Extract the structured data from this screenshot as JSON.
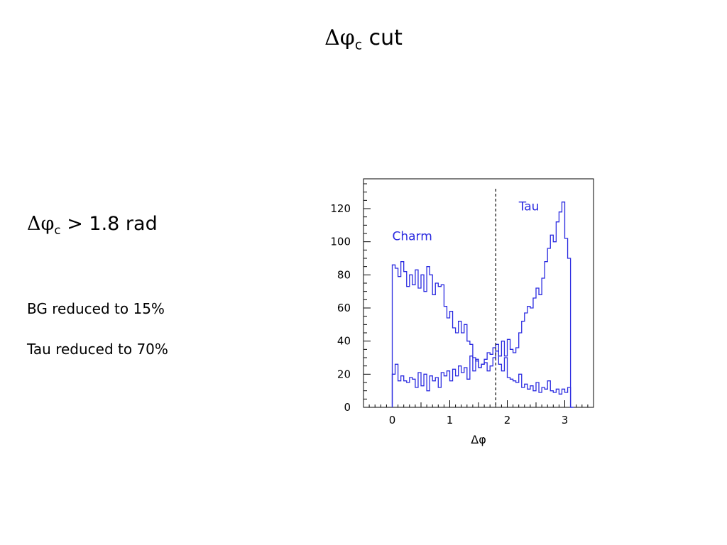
{
  "slide": {
    "title_symbol": "Δφ",
    "title_subscript": "c",
    "title_rest": " cut",
    "cut_symbol": "Δφ",
    "cut_subscript": "c",
    "cut_rest": " > 1.8 rad",
    "note_bg": "BG reduced to 15%",
    "note_tau": "Tau reduced to 70%"
  },
  "colors": {
    "histogram": "#2a2ae0",
    "axis": "#000000",
    "cut_line": "#000000"
  },
  "chart_data": {
    "type": "line",
    "xlabel": "Δφ",
    "ylabel": "",
    "xlim": [
      -0.5,
      3.5
    ],
    "ylim": [
      0,
      138
    ],
    "x_ticks": [
      0,
      1,
      2,
      3
    ],
    "y_ticks": [
      0,
      20,
      40,
      60,
      80,
      100,
      120
    ],
    "grid": false,
    "legend": "none",
    "bin_edges": [
      0,
      0.05,
      0.1,
      0.15,
      0.2,
      0.25,
      0.3,
      0.35,
      0.4,
      0.45,
      0.5,
      0.55,
      0.6,
      0.65,
      0.7,
      0.75,
      0.8,
      0.85,
      0.9,
      0.95,
      1.0,
      1.05,
      1.1,
      1.15,
      1.2,
      1.25,
      1.3,
      1.35,
      1.4,
      1.45,
      1.5,
      1.55,
      1.6,
      1.65,
      1.7,
      1.75,
      1.8,
      1.85,
      1.9,
      1.95,
      2.0,
      2.05,
      2.1,
      2.15,
      2.2,
      2.25,
      2.3,
      2.35,
      2.4,
      2.45,
      2.5,
      2.55,
      2.6,
      2.65,
      2.7,
      2.75,
      2.8,
      2.85,
      2.9,
      2.95,
      3.0,
      3.05,
      3.1,
      3.15
    ],
    "series": [
      {
        "name": "Charm",
        "values": [
          86,
          84,
          79,
          88,
          82,
          73,
          80,
          74,
          83,
          72,
          80,
          70,
          85,
          80,
          68,
          75,
          73,
          74,
          61,
          54,
          58,
          48,
          45,
          52,
          45,
          50,
          40,
          38,
          30,
          28,
          24,
          26,
          29,
          33,
          32,
          36,
          38,
          26,
          22,
          30,
          18,
          17,
          16,
          15,
          20,
          12,
          14,
          11,
          13,
          10,
          15,
          9,
          12,
          11,
          16,
          10,
          9,
          11,
          8,
          11,
          9,
          12,
          0
        ]
      },
      {
        "name": "Tau",
        "values": [
          20,
          26,
          16,
          19,
          16,
          15,
          18,
          17,
          12,
          21,
          13,
          20,
          10,
          19,
          16,
          18,
          12,
          21,
          19,
          22,
          16,
          23,
          19,
          25,
          21,
          24,
          17,
          31,
          22,
          29,
          24,
          26,
          27,
          22,
          25,
          30,
          34,
          31,
          40,
          31,
          41,
          35,
          33,
          36,
          45,
          52,
          57,
          61,
          60,
          66,
          72,
          68,
          78,
          88,
          96,
          104,
          100,
          112,
          118,
          124,
          102,
          90,
          0
        ]
      }
    ],
    "annotations": [
      {
        "text": "Charm",
        "x": 0.0,
        "y": 101
      },
      {
        "text": "Tau",
        "x": 2.2,
        "y": 119
      }
    ],
    "cut": {
      "x": 1.8,
      "style": "dashed"
    }
  }
}
